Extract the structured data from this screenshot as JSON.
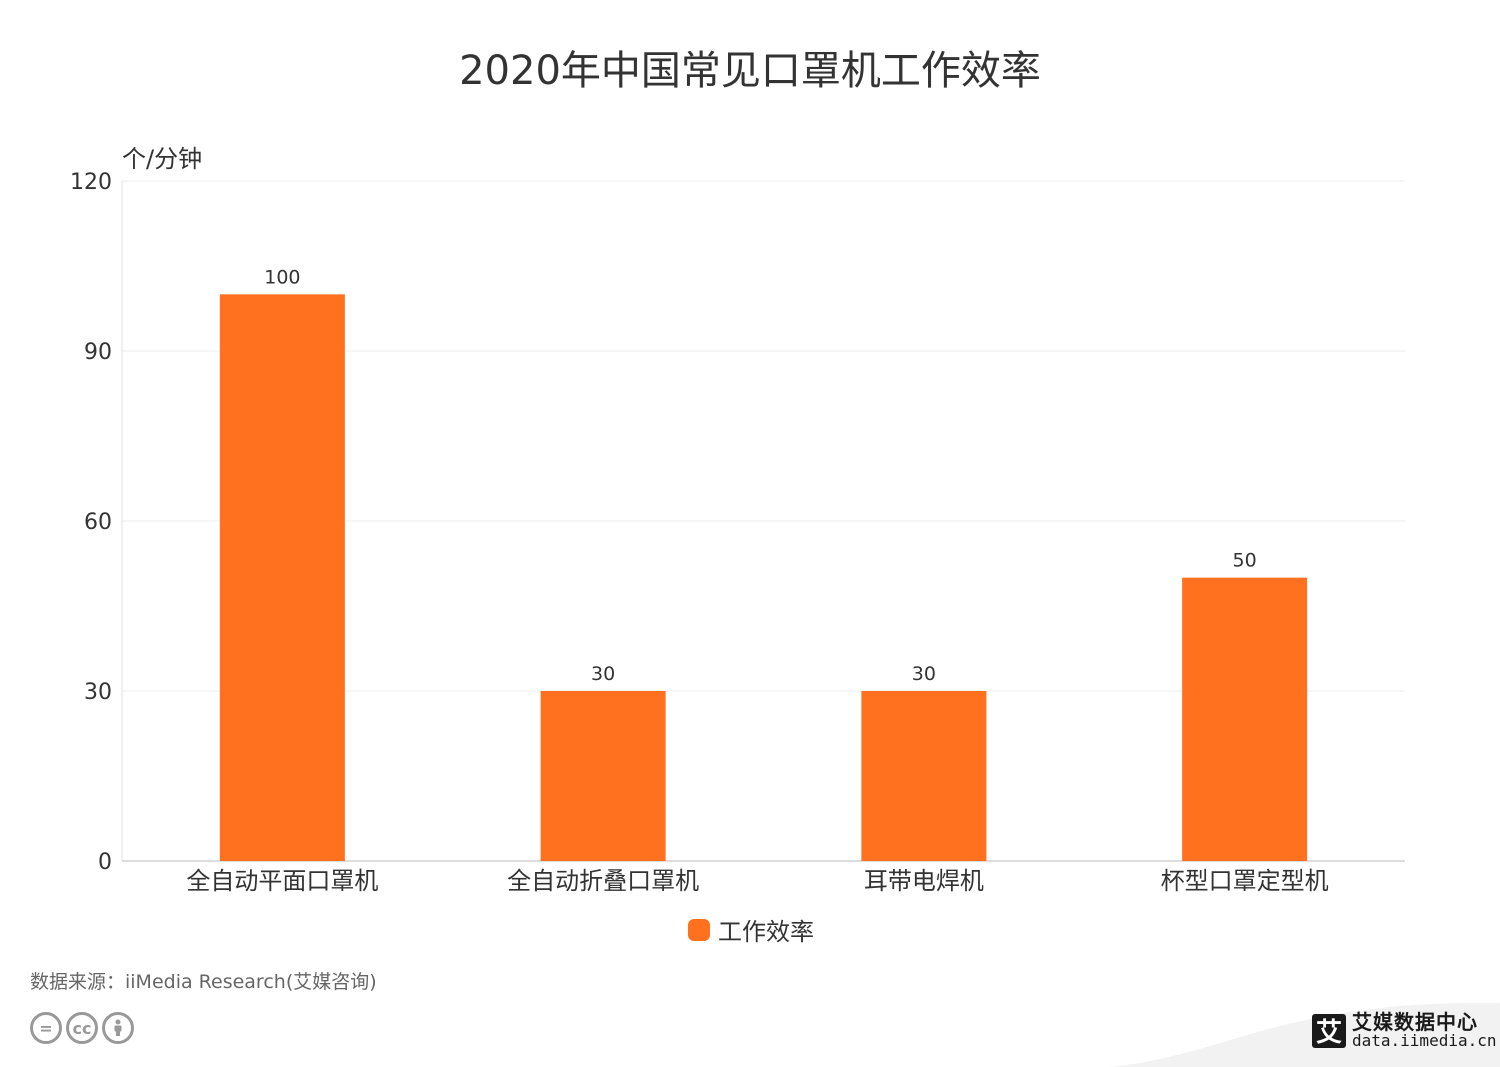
{
  "chart_data": {
    "type": "bar",
    "title": "2020年中国常见口罩机工作效率",
    "ylabel": "个/分钟",
    "xlabel": "",
    "categories": [
      "全自动平面口罩机",
      "全自动折叠口罩机",
      "耳带电焊机",
      "杯型口罩定型机"
    ],
    "series": [
      {
        "name": "工作效率",
        "values": [
          100,
          30,
          30,
          50
        ],
        "color": "#FF711F"
      }
    ],
    "ylim": [
      0,
      120
    ],
    "yticks": [
      0,
      30,
      60,
      90,
      120
    ],
    "grid": true,
    "legend_position": "bottom-center",
    "data_labels": true
  },
  "source": "数据来源：iiMedia Research(艾媒咨询)",
  "license_icons": [
    "equals-icon",
    "cc-icon",
    "person-icon"
  ],
  "brand": {
    "logo_char": "艾",
    "name": "艾媒数据中心",
    "url": "data.iimedia.cn"
  }
}
